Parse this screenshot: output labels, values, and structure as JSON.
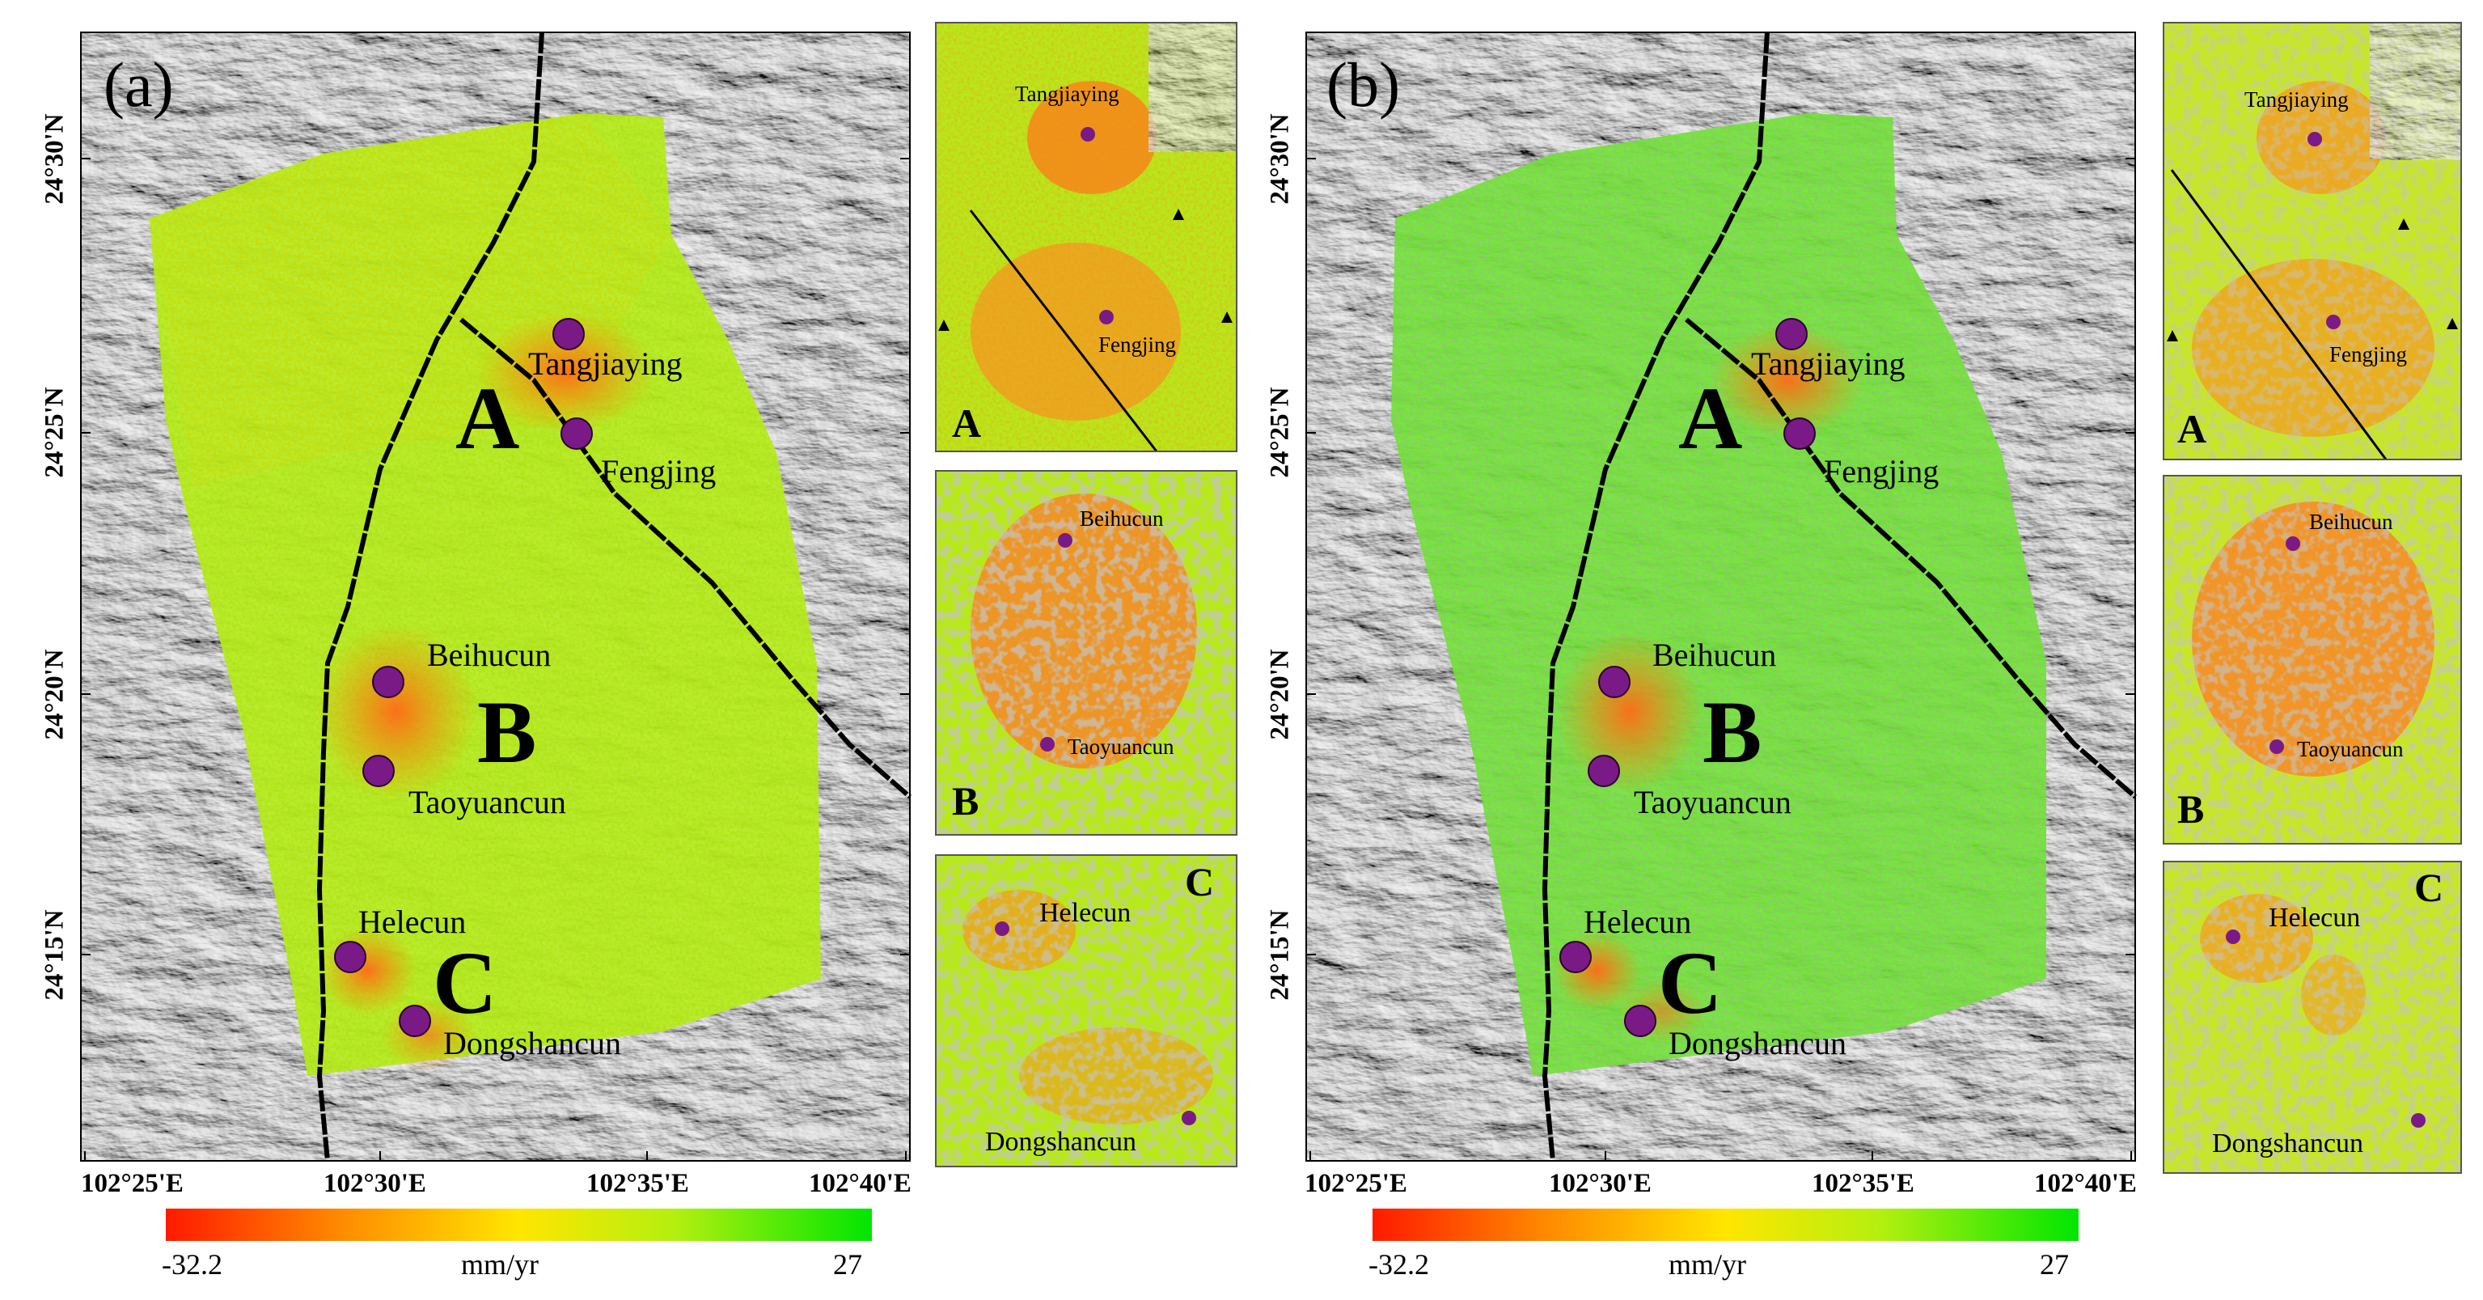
{
  "panels": [
    {
      "letter": "(a)",
      "regions": [
        "A",
        "B",
        "C"
      ],
      "places": [
        "Tangjiaying",
        "Fengjing",
        "Beihucun",
        "Taoyuancun",
        "Helecun",
        "Dongshancun"
      ],
      "x_ticks": [
        "102°25'E",
        "102°30'E",
        "102°35'E",
        "102°40'E"
      ],
      "y_ticks": [
        "24°30'N",
        "24°25'N",
        "24°20'N",
        "24°15'N"
      ],
      "colorbar": {
        "min": "-32.2",
        "max": "27",
        "unit": "mm/yr"
      },
      "insets": [
        {
          "label": "A",
          "places": [
            "Tangjiaying",
            "Fengjing"
          ]
        },
        {
          "label": "B",
          "places": [
            "Beihucun",
            "Taoyuancun"
          ]
        },
        {
          "label": "C",
          "places": [
            "Helecun",
            "Dongshancun"
          ]
        }
      ]
    },
    {
      "letter": "(b)",
      "regions": [
        "A",
        "B",
        "C"
      ],
      "places": [
        "Tangjiaying",
        "Fengjing",
        "Beihucun",
        "Taoyuancun",
        "Helecun",
        "Dongshancun"
      ],
      "x_ticks": [
        "102°25'E",
        "102°30'E",
        "102°35'E",
        "102°40'E"
      ],
      "y_ticks": [
        "24°30'N",
        "24°25'N",
        "24°20'N",
        "24°15'N"
      ],
      "colorbar": {
        "min": "-32.2",
        "max": "27",
        "unit": "mm/yr"
      },
      "insets": [
        {
          "label": "A",
          "places": [
            "Tangjiaying",
            "Fengjing"
          ]
        },
        {
          "label": "B",
          "places": [
            "Beihucun",
            "Taoyuancun"
          ]
        },
        {
          "label": "C",
          "places": [
            "Helecun",
            "Dongshancun"
          ]
        }
      ]
    }
  ],
  "colors": {
    "ramp": [
      "#ff1a00",
      "#ff8c00",
      "#ffe600",
      "#c8f000",
      "#00e600"
    ],
    "site_marker": "#7a1a86",
    "fault_line": "#000000",
    "hillshade": "#8a8a8a"
  },
  "legend_icons": [
    "site-marker-icon",
    "triangle-icon"
  ]
}
